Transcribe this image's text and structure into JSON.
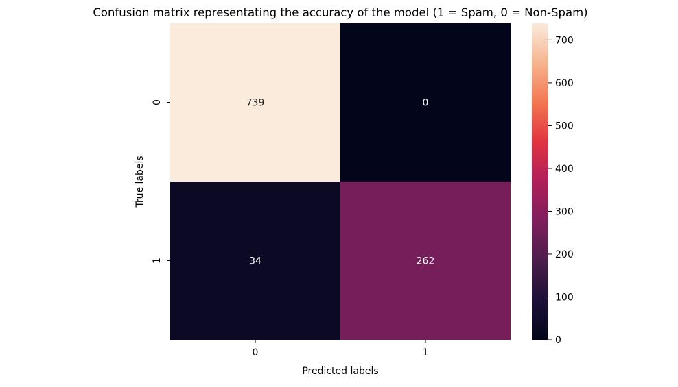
{
  "chart_data": {
    "type": "heatmap",
    "title": "Confusion matrix representating the accuracy of the model (1 = Spam, 0 = Non-Spam)",
    "xlabel": "Predicted labels",
    "ylabel": "True labels",
    "x_categories": [
      "0",
      "1"
    ],
    "y_categories": [
      "0",
      "1"
    ],
    "values": [
      [
        739,
        0
      ],
      [
        34,
        262
      ]
    ],
    "colorbar": {
      "range": [
        0,
        739
      ],
      "ticks": [
        0,
        100,
        200,
        300,
        400,
        500,
        600,
        700
      ],
      "colormap": "rocket",
      "stops": [
        "#03051a",
        "#1c1038",
        "#4c1d4b",
        "#7e1e5d",
        "#b01f5a",
        "#e13342",
        "#f37651",
        "#f6b48f",
        "#faebdd"
      ]
    }
  }
}
